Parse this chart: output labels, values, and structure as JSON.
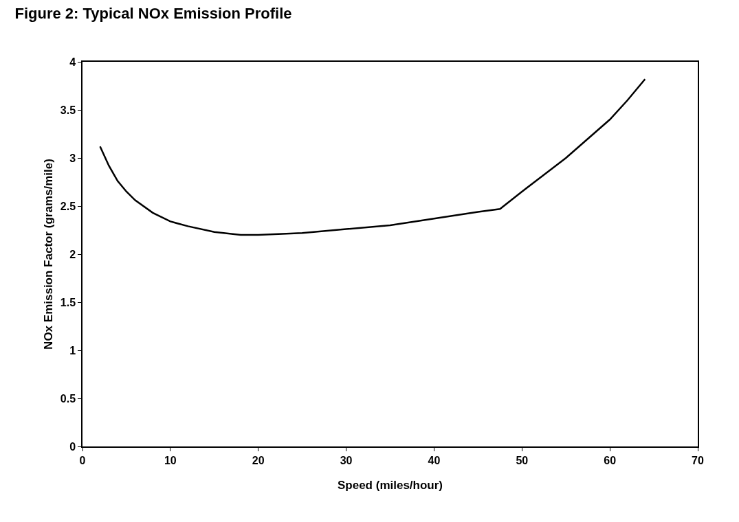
{
  "chart_data": {
    "type": "line",
    "title": "Figure 2: Typical NOx Emission Profile",
    "xlabel": "Speed (miles/hour)",
    "ylabel": "NOx Emission Factor (grams/mile)",
    "x": [
      2,
      3,
      4,
      5,
      6,
      8,
      10,
      12,
      15,
      18,
      20,
      25,
      30,
      35,
      40,
      45,
      47.5,
      50,
      55,
      60,
      62,
      64
    ],
    "series": [
      {
        "color": "#000000",
        "values": [
          3.12,
          2.92,
          2.76,
          2.65,
          2.56,
          2.43,
          2.34,
          2.29,
          2.23,
          2.2,
          2.2,
          2.22,
          2.26,
          2.3,
          2.37,
          2.44,
          2.47,
          2.65,
          3.0,
          3.4,
          3.6,
          3.82
        ]
      }
    ],
    "xlim": [
      0,
      70
    ],
    "ylim": [
      0,
      4
    ],
    "xticks": [
      0,
      10,
      20,
      30,
      40,
      50,
      60,
      70
    ],
    "yticks": [
      0,
      0.5,
      1,
      1.5,
      2,
      2.5,
      3,
      3.5,
      4
    ],
    "grid": false,
    "marker": "none",
    "line_style": "solid"
  }
}
